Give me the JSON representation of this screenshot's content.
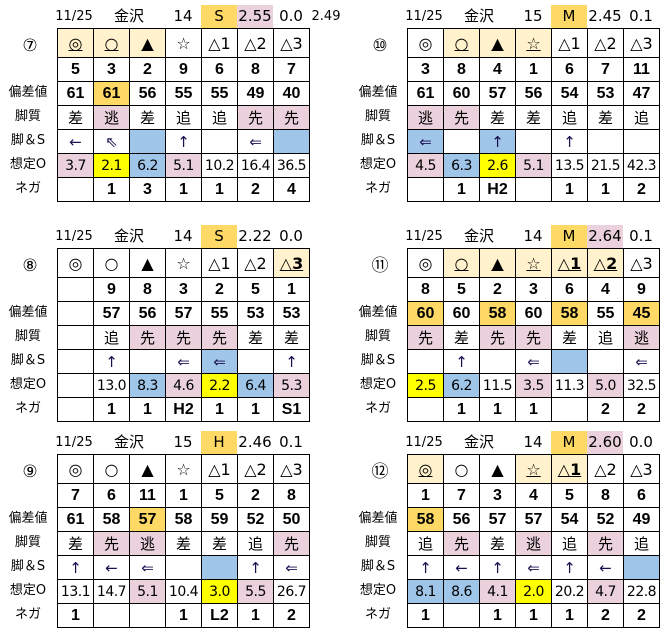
{
  "colors": {
    "o": "#ffd966",
    "m": "#fff2cc",
    "p": "#ead1dc",
    "b": "#9fc5e8",
    "y": "#ffff00"
  },
  "row_labels": [
    "偏差値",
    "脚質",
    "脚＆S",
    "想定O",
    "ネガ"
  ],
  "blocks": [
    {
      "id": "7",
      "race": "⑦",
      "date": "11/25",
      "venue": "金沢",
      "count": "14",
      "grade": "S",
      "val1": "2.55",
      "val1_bg": "p",
      "val2": "0.0",
      "extra": "2.49",
      "marks": [
        "◎",
        "○",
        "▲",
        "☆",
        "△1",
        "△2",
        "△3"
      ],
      "mark_bg": [
        "m",
        "m",
        "m",
        "",
        "",
        "",
        ""
      ],
      "mark_u": [
        1,
        1,
        1,
        0,
        0,
        0,
        0
      ],
      "nums": [
        "5",
        "3",
        "2",
        "9",
        "6",
        "8",
        "7"
      ],
      "dev": [
        "61",
        "61",
        "56",
        "55",
        "55",
        "49",
        "40"
      ],
      "dev_bg": [
        "",
        "o",
        "",
        "",
        "",
        "",
        ""
      ],
      "style": [
        "差",
        "逃",
        "差",
        "追",
        "追",
        "先",
        "先"
      ],
      "style_bg": [
        "",
        "p",
        "",
        "",
        "",
        "p",
        "p"
      ],
      "arrow": [
        "←",
        "⇖",
        "",
        "↑",
        "",
        "⇐",
        ""
      ],
      "arrow_bg": [
        "",
        "",
        "b",
        "",
        "",
        "",
        "b"
      ],
      "odds": [
        "3.7",
        "2.1",
        "6.2",
        "5.1",
        "10.2",
        "16.4",
        "36.5"
      ],
      "odds_bg": [
        "p",
        "y",
        "b",
        "p",
        "",
        "",
        ""
      ],
      "nega": [
        "",
        "1",
        "3",
        "1",
        "1",
        "2",
        "4"
      ]
    },
    {
      "id": "10",
      "race": "⑩",
      "date": "11/25",
      "venue": "金沢",
      "count": "15",
      "grade": "M",
      "val1": "2.45",
      "val1_bg": "",
      "val2": "0.1",
      "extra": "",
      "marks": [
        "◎",
        "○",
        "▲",
        "☆",
        "△1",
        "△2",
        "△3"
      ],
      "mark_bg": [
        "",
        "m",
        "m",
        "m",
        "",
        "",
        ""
      ],
      "mark_u": [
        0,
        1,
        1,
        1,
        0,
        0,
        0
      ],
      "nums": [
        "3",
        "8",
        "4",
        "1",
        "6",
        "7",
        "11"
      ],
      "dev": [
        "61",
        "60",
        "57",
        "56",
        "54",
        "53",
        "47"
      ],
      "dev_bg": [
        "",
        "",
        "",
        "",
        "",
        "",
        ""
      ],
      "style": [
        "逃",
        "先",
        "差",
        "差",
        "追",
        "差",
        "追"
      ],
      "style_bg": [
        "p",
        "p",
        "",
        "",
        "",
        "",
        ""
      ],
      "arrow": [
        "⇐",
        "",
        "↑",
        "",
        "↑",
        "",
        ""
      ],
      "arrow_bg": [
        "b",
        "",
        "b",
        "",
        "",
        "",
        ""
      ],
      "odds": [
        "4.5",
        "6.3",
        "2.6",
        "5.1",
        "13.5",
        "21.5",
        "42.3"
      ],
      "odds_bg": [
        "p",
        "b",
        "y",
        "p",
        "",
        "",
        ""
      ],
      "nega": [
        "",
        "1",
        "H2",
        "",
        "1",
        "1",
        "2"
      ]
    },
    {
      "id": "8",
      "race": "⑧",
      "date": "11/25",
      "venue": "金沢",
      "count": "14",
      "grade": "S",
      "val1": "2.22",
      "val1_bg": "",
      "val2": "0.0",
      "extra": "",
      "marks": [
        "◎",
        "○",
        "▲",
        "☆",
        "△1",
        "△2",
        "△3"
      ],
      "mark_bg": [
        "",
        "",
        "",
        "",
        "",
        "",
        "m"
      ],
      "mark_u": [
        0,
        0,
        0,
        0,
        0,
        0,
        1
      ],
      "nums": [
        "",
        "9",
        "8",
        "3",
        "2",
        "5",
        "1"
      ],
      "dev": [
        "",
        "57",
        "56",
        "57",
        "55",
        "53",
        "53"
      ],
      "dev_bg": [
        "",
        "",
        "",
        "",
        "",
        "",
        ""
      ],
      "style": [
        "",
        "追",
        "先",
        "先",
        "先",
        "差",
        "差"
      ],
      "style_bg": [
        "",
        "",
        "p",
        "p",
        "p",
        "",
        ""
      ],
      "arrow": [
        "",
        "↑",
        "",
        "⇐",
        "⇐",
        "",
        "↑"
      ],
      "arrow_bg": [
        "",
        "",
        "",
        "",
        "b",
        "",
        ""
      ],
      "odds": [
        "",
        "13.0",
        "8.3",
        "4.6",
        "2.2",
        "6.4",
        "5.3"
      ],
      "odds_bg": [
        "",
        "",
        "b",
        "p",
        "y",
        "b",
        "p"
      ],
      "nega": [
        "",
        "1",
        "1",
        "H2",
        "1",
        "1",
        "S1"
      ]
    },
    {
      "id": "11",
      "race": "⑪",
      "date": "11/25",
      "venue": "金沢",
      "count": "14",
      "grade": "M",
      "val1": "2.64",
      "val1_bg": "p",
      "val2": "0.1",
      "extra": "",
      "marks": [
        "◎",
        "○",
        "▲",
        "☆",
        "△1",
        "△2",
        "△3"
      ],
      "mark_bg": [
        "",
        "m",
        "m",
        "m",
        "m",
        "m",
        ""
      ],
      "mark_u": [
        0,
        1,
        1,
        1,
        1,
        1,
        0
      ],
      "nums": [
        "8",
        "5",
        "2",
        "3",
        "6",
        "4",
        "9"
      ],
      "dev": [
        "60",
        "60",
        "58",
        "60",
        "58",
        "55",
        "45"
      ],
      "dev_bg": [
        "o",
        "",
        "o",
        "",
        "o",
        "",
        "o"
      ],
      "style": [
        "先",
        "差",
        "先",
        "先",
        "差",
        "追",
        "逃"
      ],
      "style_bg": [
        "p",
        "",
        "p",
        "p",
        "",
        "",
        "p"
      ],
      "arrow": [
        "",
        "↑",
        "",
        "⇐",
        "",
        "",
        "⇐"
      ],
      "arrow_bg": [
        "",
        "",
        "",
        "",
        "b",
        "",
        ""
      ],
      "odds": [
        "2.5",
        "6.2",
        "11.5",
        "3.5",
        "11.3",
        "5.0",
        "32.5"
      ],
      "odds_bg": [
        "y",
        "b",
        "",
        "p",
        "",
        "p",
        ""
      ],
      "nega": [
        "",
        "1",
        "1",
        "1",
        "",
        "2",
        "2"
      ]
    },
    {
      "id": "9",
      "race": "⑨",
      "date": "11/25",
      "venue": "金沢",
      "count": "15",
      "grade": "H",
      "val1": "2.46",
      "val1_bg": "",
      "val2": "0.1",
      "extra": "",
      "marks": [
        "◎",
        "○",
        "▲",
        "☆",
        "△1",
        "△2",
        "△3"
      ],
      "mark_bg": [
        "",
        "",
        "",
        "",
        "",
        "",
        ""
      ],
      "mark_u": [
        0,
        0,
        0,
        0,
        0,
        0,
        0
      ],
      "nums": [
        "7",
        "6",
        "11",
        "1",
        "5",
        "2",
        "8"
      ],
      "dev": [
        "61",
        "58",
        "57",
        "58",
        "59",
        "52",
        "50"
      ],
      "dev_bg": [
        "",
        "",
        "o",
        "",
        "",
        "",
        ""
      ],
      "style": [
        "差",
        "先",
        "逃",
        "差",
        "差",
        "追",
        "先"
      ],
      "style_bg": [
        "",
        "p",
        "p",
        "",
        "",
        "",
        "p"
      ],
      "arrow": [
        "↑",
        "←",
        "⇐",
        "",
        "",
        "↑",
        "⇐"
      ],
      "arrow_bg": [
        "",
        "",
        "",
        "",
        "b",
        "",
        ""
      ],
      "odds": [
        "13.1",
        "14.7",
        "5.1",
        "10.4",
        "3.0",
        "5.5",
        "26.7"
      ],
      "odds_bg": [
        "",
        "",
        "p",
        "",
        "y",
        "p",
        ""
      ],
      "nega": [
        "1",
        "",
        "",
        "1",
        "L2",
        "1",
        "2"
      ]
    },
    {
      "id": "12",
      "race": "⑫",
      "date": "11/25",
      "venue": "金沢",
      "count": "14",
      "grade": "M",
      "val1": "2.60",
      "val1_bg": "p",
      "val2": "0.0",
      "extra": "",
      "marks": [
        "◎",
        "○",
        "▲",
        "☆",
        "△1",
        "△2",
        "△3"
      ],
      "mark_bg": [
        "m",
        "",
        "",
        "m",
        "m",
        "",
        ""
      ],
      "mark_u": [
        1,
        0,
        0,
        1,
        1,
        0,
        0
      ],
      "nums": [
        "1",
        "7",
        "3",
        "4",
        "5",
        "8",
        "6"
      ],
      "dev": [
        "58",
        "56",
        "57",
        "57",
        "54",
        "52",
        "49"
      ],
      "dev_bg": [
        "o",
        "",
        "",
        "",
        "",
        "",
        ""
      ],
      "style": [
        "追",
        "先",
        "差",
        "逃",
        "追",
        "先",
        "追"
      ],
      "style_bg": [
        "",
        "p",
        "",
        "p",
        "",
        "p",
        ""
      ],
      "arrow": [
        "↑",
        "←",
        "↑",
        "⇐",
        "↑",
        "←",
        ""
      ],
      "arrow_bg": [
        "",
        "",
        "",
        "",
        "",
        "",
        "b"
      ],
      "odds": [
        "8.1",
        "8.6",
        "4.1",
        "2.0",
        "20.2",
        "4.7",
        "22.8"
      ],
      "odds_bg": [
        "b",
        "b",
        "p",
        "y",
        "",
        "p",
        ""
      ],
      "nega": [
        "1",
        "",
        "1",
        "1",
        "1",
        "2",
        "2"
      ]
    }
  ]
}
